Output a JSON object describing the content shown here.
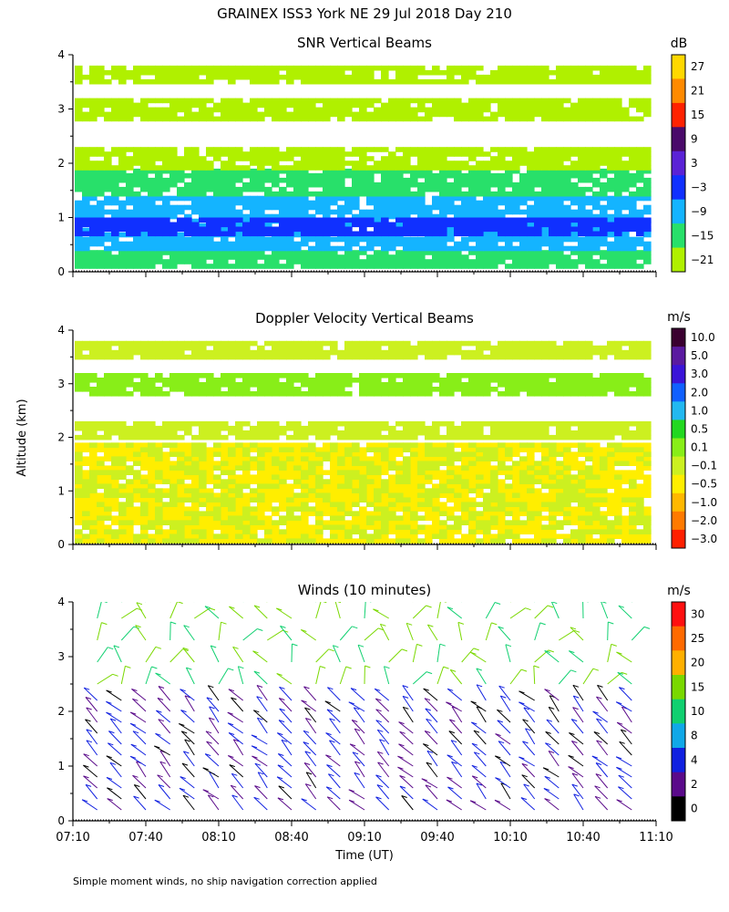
{
  "title": "GRAINEX ISS3 York NE  29 Jul 2018 Day 210",
  "footnote": "Simple moment winds, no ship navigation correction applied",
  "shared_axes": {
    "ylabel": "Altitude (km)",
    "xlabel": "Time (UT)",
    "x_tick_labels": [
      "07:10",
      "07:40",
      "08:10",
      "08:40",
      "09:10",
      "09:40",
      "10:10",
      "10:40",
      "11:10"
    ],
    "y_tick_labels": [
      "0",
      "1",
      "2",
      "3",
      "4"
    ]
  },
  "chart_data": [
    {
      "type": "heatmap",
      "title": "SNR Vertical Beams",
      "xlabel": "",
      "ylabel": "Altitude (km)",
      "xlim": [
        "07:10",
        "11:10"
      ],
      "ylim": [
        0,
        4
      ],
      "colorbar_unit": "dB",
      "colorbar_ticks": [
        "27",
        "21",
        "15",
        "9",
        "3",
        "−3",
        "−9",
        "−15",
        "−21"
      ],
      "colorbar_colors": [
        "#ffd800",
        "#ff8a00",
        "#ff2200",
        "#4a0a6a",
        "#5a22d6",
        "#1030ff",
        "#14b4ff",
        "#28e06a",
        "#b0f000"
      ],
      "bands_km": [
        {
          "from": 0.1,
          "to": 0.4,
          "level": -15
        },
        {
          "from": 0.4,
          "to": 1.4,
          "level": -9
        },
        {
          "from": 0.7,
          "to": 1.0,
          "level": -3
        },
        {
          "from": 1.4,
          "to": 1.9,
          "level": -15
        },
        {
          "from": 1.9,
          "to": 2.3,
          "level": -21
        },
        {
          "from": 2.8,
          "to": 3.2,
          "level": -21
        },
        {
          "from": 3.5,
          "to": 3.8,
          "level": -21
        }
      ]
    },
    {
      "type": "heatmap",
      "title": "Doppler Velocity Vertical Beams",
      "xlabel": "",
      "ylabel": "Altitude (km)",
      "xlim": [
        "07:10",
        "11:10"
      ],
      "ylim": [
        0,
        4
      ],
      "colorbar_unit": "m/s",
      "colorbar_ticks": [
        "10.0",
        "5.0",
        "3.0",
        "2.0",
        "1.0",
        "0.5",
        "0.1",
        "−0.1",
        "−0.5",
        "−1.0",
        "−2.0",
        "−3.0"
      ],
      "colorbar_colors": [
        "#3a0030",
        "#5a1aa0",
        "#3a14d8",
        "#1060ff",
        "#22b8f0",
        "#22d820",
        "#88ee18",
        "#ccf020",
        "#ffee00",
        "#ffb800",
        "#ff7a00",
        "#ff2000"
      ],
      "bands_km": [
        {
          "from": 0.1,
          "to": 1.9,
          "level": -0.5
        },
        {
          "from": 0.1,
          "to": 1.9,
          "level": -0.1,
          "patchy": true
        },
        {
          "from": 2.0,
          "to": 2.3,
          "level": -0.1
        },
        {
          "from": 2.8,
          "to": 3.2,
          "level": 0.1
        },
        {
          "from": 3.5,
          "to": 3.8,
          "level": -0.1
        }
      ]
    },
    {
      "type": "scatter",
      "title": "Winds (10 minutes)",
      "xlabel": "Time (UT)",
      "ylabel": "Altitude (km)",
      "xlim": [
        "07:10",
        "11:10"
      ],
      "ylim": [
        0,
        4
      ],
      "colorbar_unit": "m/s",
      "colorbar_ticks": [
        "30",
        "25",
        "20",
        "15",
        "10",
        "8",
        "4",
        "2",
        "0"
      ],
      "colorbar_colors": [
        "#ff1010",
        "#ff6a00",
        "#ffb000",
        "#7ad800",
        "#10d070",
        "#10a8e8",
        "#1020e0",
        "#5a0a8a",
        "#000000"
      ],
      "profile_times": [
        "07:20",
        "07:30",
        "07:40",
        "07:50",
        "08:00",
        "08:10",
        "08:20",
        "08:30",
        "08:40",
        "08:50",
        "09:00",
        "09:10",
        "09:20",
        "09:30",
        "09:40",
        "09:50",
        "10:00",
        "10:10",
        "10:20",
        "10:30",
        "10:40",
        "10:50",
        "11:00"
      ],
      "barb_altitudes_km": [
        0.2,
        0.4,
        0.6,
        0.8,
        1.0,
        1.2,
        1.4,
        1.6,
        1.8,
        2.0,
        2.2,
        2.5,
        2.9,
        3.3,
        3.7,
        4.0
      ],
      "dominant_speed_ms": {
        "0-2.3 km": 4,
        "2.3-4 km": 15
      }
    }
  ]
}
